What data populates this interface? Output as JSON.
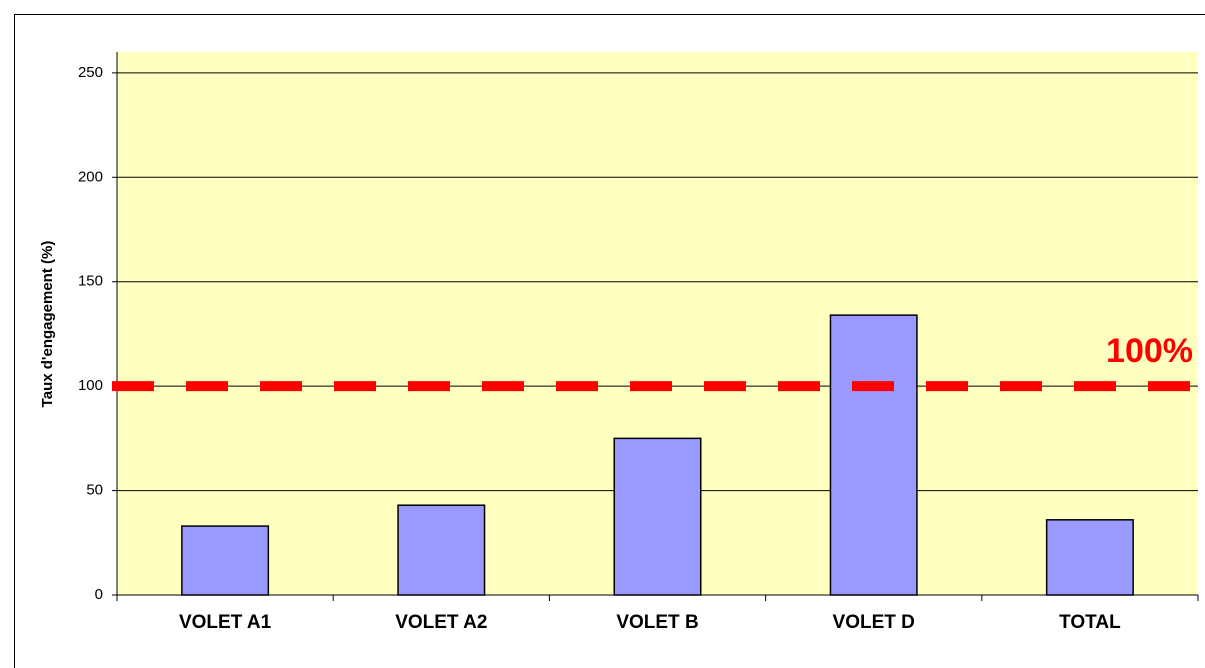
{
  "chart_data": {
    "type": "bar",
    "y_axis_label": "Taux d'engagement (%)",
    "categories": [
      "VOLET A1",
      "VOLET A2",
      "VOLET B",
      "VOLET D",
      "TOTAL"
    ],
    "values": [
      33,
      43,
      75,
      134,
      36
    ],
    "color": "#9999ff",
    "ylim": [
      0,
      260
    ],
    "yticks": [
      0,
      50,
      100,
      150,
      200,
      250
    ],
    "grid": true,
    "reference_line": {
      "value": 100,
      "label": "100%",
      "color": "#ff0000"
    }
  }
}
